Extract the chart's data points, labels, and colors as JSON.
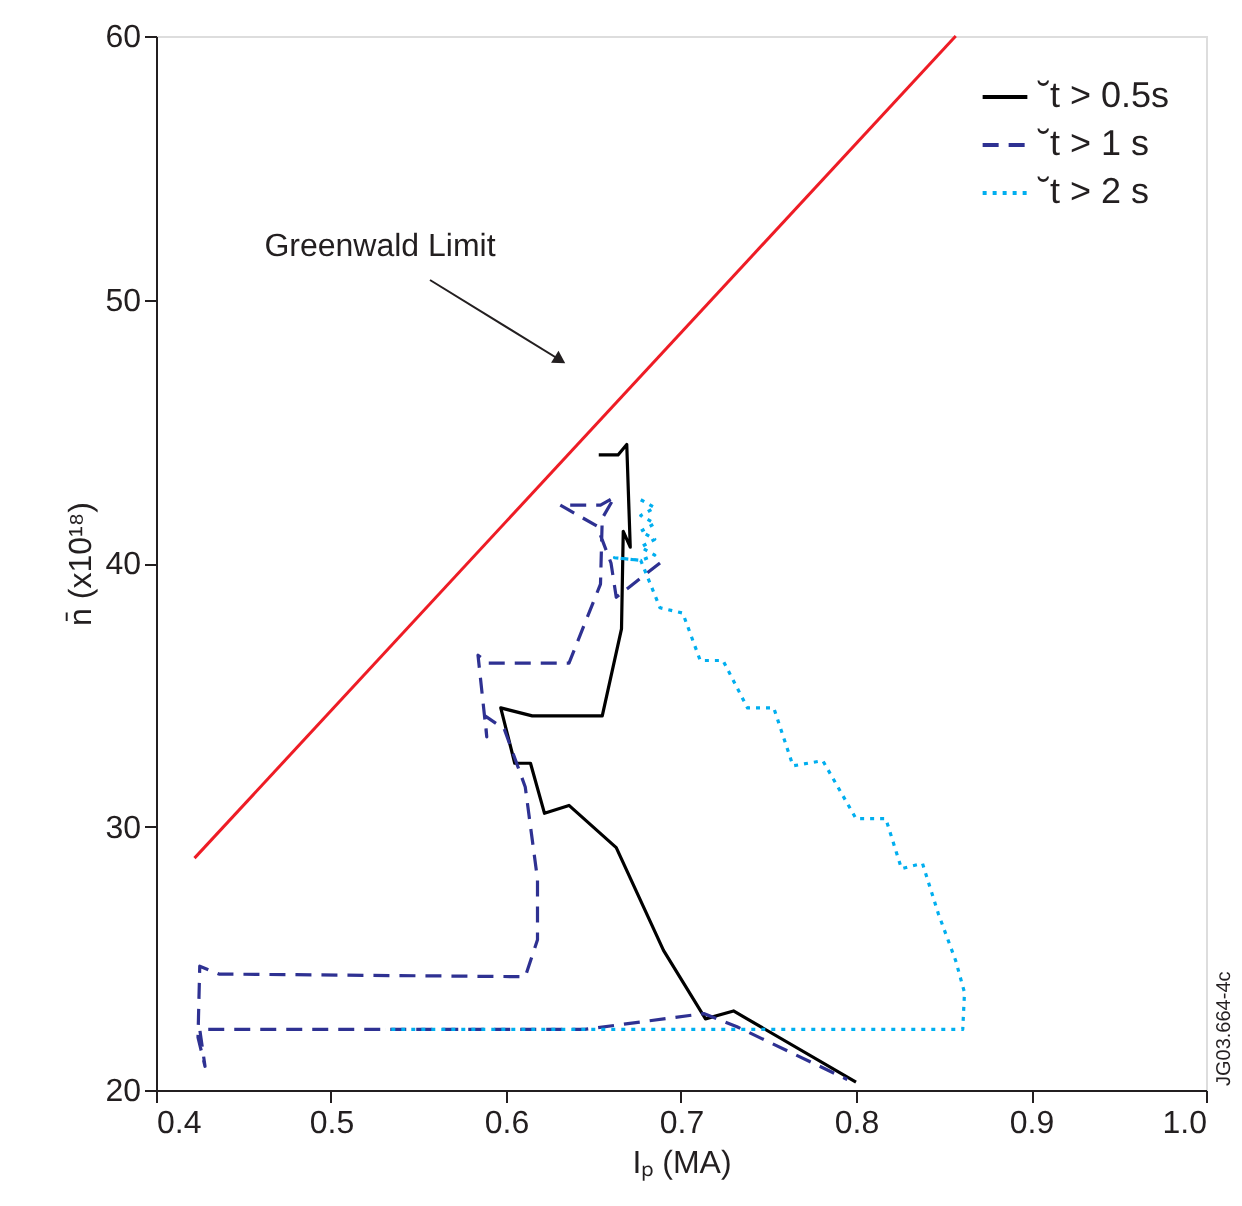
{
  "chart_data": {
    "type": "line",
    "xlabel": "Iₚ (MA)",
    "ylabel": "n̄ (x10¹⁸)",
    "xlim": [
      0.4,
      1.0
    ],
    "xticks": [
      0.4,
      0.5,
      0.6,
      0.7,
      0.8,
      0.9,
      {
        "value": 1.0,
        "label": "1.0"
      }
    ],
    "ylim": [
      20,
      60
    ],
    "yticks": [
      20,
      30,
      40,
      50,
      60
    ],
    "grid": false,
    "legend": "top right",
    "marker": "none",
    "series": [
      {
        "color": "#ee1c25",
        "line_style": "solid",
        "x": [
          0.422,
          0.857
        ],
        "values": [
          28.8,
          60
        ]
      },
      {
        "name": "˘t > 0.5s",
        "color": "#000000",
        "line_style": "solid",
        "x": [
          0.653,
          0.664,
          0.669,
          0.671,
          0.667,
          0.666,
          0.655,
          0.615,
          0.597,
          0.605,
          0.614,
          0.622,
          0.636,
          0.663,
          0.69,
          0.714,
          0.73,
          0.8
        ],
        "values": [
          44.1,
          44.1,
          44.5,
          40.6,
          41.2,
          37.5,
          34.2,
          34.2,
          34.5,
          32.4,
          32.4,
          30.5,
          30.8,
          29.2,
          25.3,
          22.7,
          23.0,
          20.3
        ]
      },
      {
        "name": "˘t > 1 s",
        "color": "#2e3192",
        "line_style": "dashed",
        "x": [
          0.688,
          0.663,
          0.66,
          0.652,
          0.631,
          0.654,
          0.662,
          0.655,
          0.654,
          0.636,
          0.59,
          0.584,
          0.589,
          0.588,
          0.599,
          0.611,
          0.618,
          0.618,
          0.611,
          0.436,
          0.425,
          0.424,
          0.428,
          0.425,
          0.645,
          0.713,
          0.732,
          0.795
        ],
        "values": [
          40.0,
          38.7,
          40.0,
          41.4,
          42.2,
          42.2,
          42.5,
          41.7,
          39.2,
          36.2,
          36.2,
          36.5,
          33.4,
          34.2,
          33.7,
          31.5,
          28.0,
          25.7,
          24.3,
          24.4,
          24.7,
          22.0,
          20.9,
          22.3,
          22.3,
          22.9,
          22.4,
          20.4
        ]
      },
      {
        "name": "˘t > 2 s",
        "color": "#00aeef",
        "line_style": "dotted",
        "x": [
          0.677,
          0.685,
          0.677,
          0.685,
          0.677,
          0.685,
          0.677,
          0.685,
          0.677,
          0.662,
          0.677,
          0.688,
          0.701,
          0.711,
          0.724,
          0.738,
          0.753,
          0.764,
          0.781,
          0.8,
          0.817,
          0.826,
          0.838,
          0.847,
          0.857,
          0.862,
          0.861,
          0.531
        ],
        "values": [
          42.4,
          42.1,
          41.8,
          41.5,
          41.2,
          40.9,
          40.6,
          40.3,
          40.1,
          40.2,
          40.1,
          38.3,
          38.1,
          36.3,
          36.3,
          34.5,
          34.5,
          32.3,
          32.5,
          30.3,
          30.3,
          28.4,
          28.6,
          26.7,
          24.9,
          23.7,
          22.3,
          22.3
        ]
      }
    ],
    "annotations": [
      "Greenwald Limit",
      "JG03.664-4c"
    ]
  }
}
